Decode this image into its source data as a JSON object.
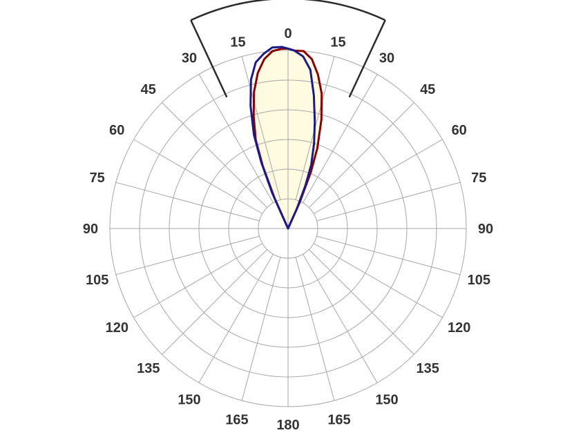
{
  "chart_data": {
    "type": "polar-line",
    "title": "",
    "angle_ticks_left": [
      "0",
      "15",
      "30",
      "45",
      "60",
      "75",
      "90",
      "105",
      "120",
      "135",
      "150",
      "165",
      "180"
    ],
    "angle_ticks_right": [
      "15",
      "30",
      "45",
      "60",
      "75",
      "90",
      "105",
      "120",
      "135",
      "150",
      "165"
    ],
    "angle_step_deg": 15,
    "radial_rings": 6,
    "radial_max": 1.0,
    "beam_sector_deg": [
      -25,
      25
    ],
    "grid": true,
    "legend": "none",
    "colors": {
      "grid": "#a6a6a6",
      "sector": "#2b2b2b",
      "fill": "#fffbe0",
      "series_red": "#8b0000",
      "series_blue": "#1a1a8c"
    },
    "series": [
      {
        "color": "red",
        "points": [
          {
            "angle": -24,
            "r": 0.18
          },
          {
            "angle": -22,
            "r": 0.38
          },
          {
            "angle": -20,
            "r": 0.53
          },
          {
            "angle": -17,
            "r": 0.66
          },
          {
            "angle": -14,
            "r": 0.79
          },
          {
            "angle": -11,
            "r": 0.89
          },
          {
            "angle": -8,
            "r": 0.96
          },
          {
            "angle": -5,
            "r": 1.0
          },
          {
            "angle": -2,
            "r": 1.01
          },
          {
            "angle": 0,
            "r": 1.01
          },
          {
            "angle": 2,
            "r": 1.0
          },
          {
            "angle": 5,
            "r": 1.0
          },
          {
            "angle": 8,
            "r": 0.96
          },
          {
            "angle": 11,
            "r": 0.88
          },
          {
            "angle": 14,
            "r": 0.78
          },
          {
            "angle": 17,
            "r": 0.64
          },
          {
            "angle": 20,
            "r": 0.48
          },
          {
            "angle": 22,
            "r": 0.34
          },
          {
            "angle": 24,
            "r": 0.16
          }
        ]
      },
      {
        "color": "blue",
        "points": [
          {
            "angle": -24,
            "r": 0.22
          },
          {
            "angle": -22,
            "r": 0.4
          },
          {
            "angle": -20,
            "r": 0.56
          },
          {
            "angle": -17,
            "r": 0.72
          },
          {
            "angle": -14,
            "r": 0.86
          },
          {
            "angle": -11,
            "r": 0.95
          },
          {
            "angle": -8,
            "r": 0.99
          },
          {
            "angle": -5,
            "r": 1.02
          },
          {
            "angle": -2,
            "r": 1.02
          },
          {
            "angle": 0,
            "r": 1.01
          },
          {
            "angle": 2,
            "r": 1.0
          },
          {
            "angle": 5,
            "r": 0.97
          },
          {
            "angle": 8,
            "r": 0.9
          },
          {
            "angle": 11,
            "r": 0.76
          },
          {
            "angle": 14,
            "r": 0.62
          },
          {
            "angle": 17,
            "r": 0.5
          },
          {
            "angle": 20,
            "r": 0.38
          },
          {
            "angle": 22,
            "r": 0.26
          },
          {
            "angle": 24,
            "r": 0.12
          }
        ]
      }
    ]
  }
}
